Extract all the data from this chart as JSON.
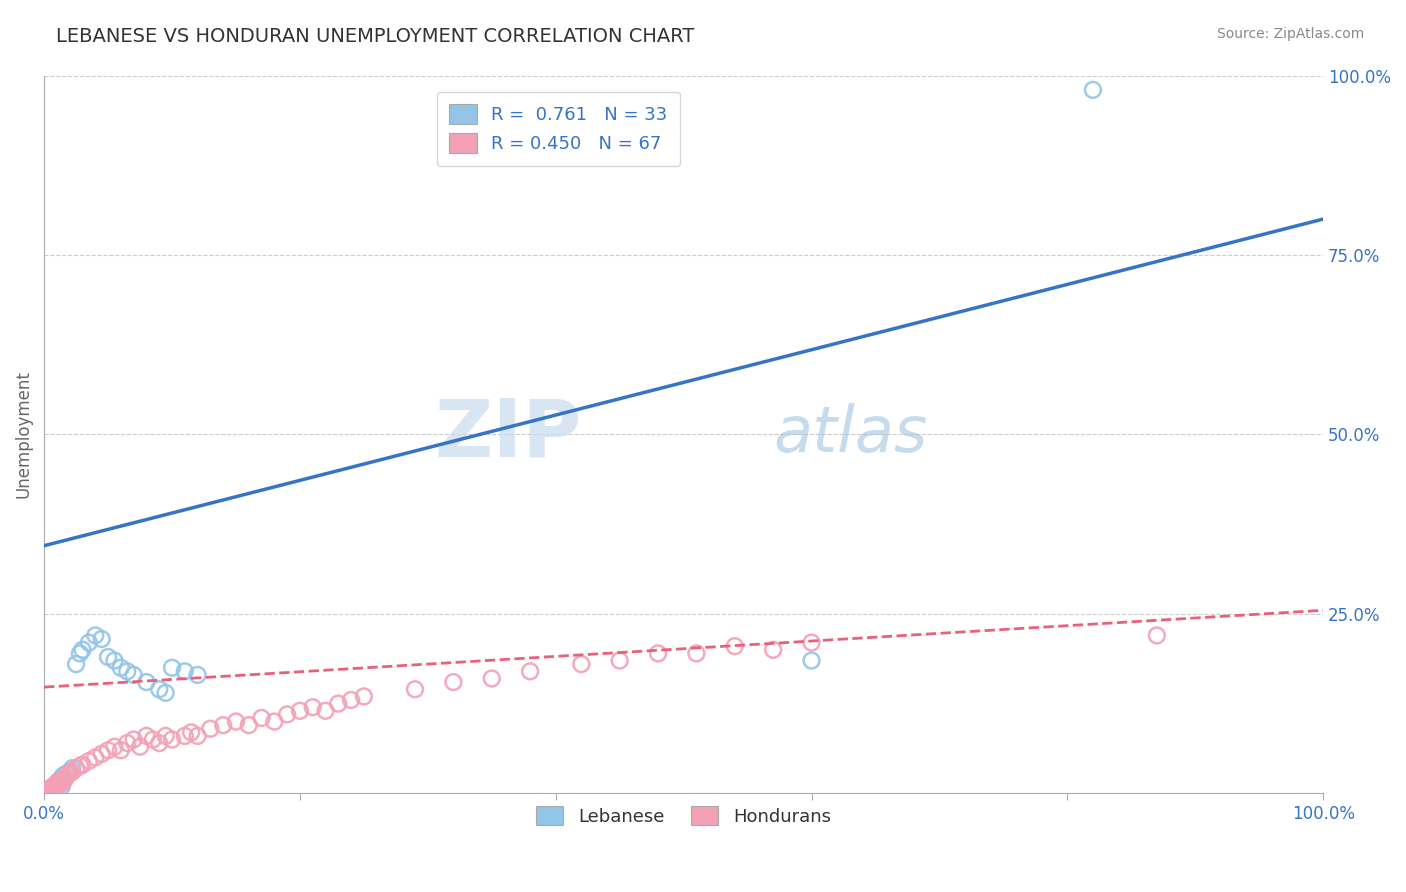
{
  "title": "LEBANESE VS HONDURAN UNEMPLOYMENT CORRELATION CHART",
  "source_text": "Source: ZipAtlas.com",
  "ylabel": "Unemployment",
  "watermark_zip": "ZIP",
  "watermark_atlas": "atlas",
  "xlim": [
    0.0,
    1.0
  ],
  "ylim": [
    0.0,
    1.0
  ],
  "lebanese_color": "#92C5E8",
  "honduran_color": "#F4A0B5",
  "lebanese_line_color": "#3674C8",
  "honduran_line_color": "#E8607A",
  "grid_color": "#CCCCCC",
  "background_color": "#FFFFFF",
  "title_fontsize": 14,
  "legend_label_lebanese": "Lebanese",
  "legend_label_honduran": "Hondurans",
  "leb_line_x0": 0.0,
  "leb_line_y0": 0.345,
  "leb_line_x1": 1.0,
  "leb_line_y1": 0.8,
  "hon_line_x0": 0.0,
  "hon_line_y0": 0.148,
  "hon_line_x1": 1.0,
  "hon_line_y1": 0.255,
  "leb_scatter_x": [
    0.005,
    0.007,
    0.008,
    0.009,
    0.01,
    0.011,
    0.012,
    0.013,
    0.014,
    0.015,
    0.016,
    0.018,
    0.02,
    0.022,
    0.025,
    0.028,
    0.03,
    0.035,
    0.04,
    0.045,
    0.05,
    0.055,
    0.06,
    0.065,
    0.07,
    0.08,
    0.09,
    0.095,
    0.1,
    0.11,
    0.12,
    0.6,
    0.82
  ],
  "leb_scatter_y": [
    0.005,
    0.008,
    0.01,
    0.006,
    0.012,
    0.015,
    0.018,
    0.02,
    0.01,
    0.025,
    0.022,
    0.028,
    0.03,
    0.035,
    0.18,
    0.195,
    0.2,
    0.21,
    0.22,
    0.215,
    0.19,
    0.185,
    0.175,
    0.17,
    0.165,
    0.155,
    0.145,
    0.14,
    0.175,
    0.17,
    0.165,
    0.185,
    0.98
  ],
  "hon_scatter_x": [
    0.002,
    0.003,
    0.004,
    0.005,
    0.005,
    0.006,
    0.007,
    0.007,
    0.008,
    0.009,
    0.01,
    0.01,
    0.011,
    0.012,
    0.013,
    0.014,
    0.015,
    0.016,
    0.017,
    0.018,
    0.02,
    0.022,
    0.025,
    0.028,
    0.03,
    0.035,
    0.04,
    0.045,
    0.05,
    0.055,
    0.06,
    0.065,
    0.07,
    0.075,
    0.08,
    0.085,
    0.09,
    0.095,
    0.1,
    0.11,
    0.115,
    0.12,
    0.13,
    0.14,
    0.15,
    0.16,
    0.17,
    0.18,
    0.19,
    0.2,
    0.21,
    0.22,
    0.23,
    0.24,
    0.25,
    0.29,
    0.32,
    0.35,
    0.38,
    0.42,
    0.45,
    0.48,
    0.51,
    0.54,
    0.57,
    0.6,
    0.87
  ],
  "hon_scatter_y": [
    0.002,
    0.004,
    0.003,
    0.005,
    0.007,
    0.006,
    0.008,
    0.01,
    0.009,
    0.011,
    0.012,
    0.015,
    0.013,
    0.016,
    0.018,
    0.014,
    0.02,
    0.019,
    0.022,
    0.025,
    0.028,
    0.03,
    0.035,
    0.038,
    0.04,
    0.045,
    0.05,
    0.055,
    0.06,
    0.065,
    0.06,
    0.07,
    0.075,
    0.065,
    0.08,
    0.075,
    0.07,
    0.08,
    0.075,
    0.08,
    0.085,
    0.08,
    0.09,
    0.095,
    0.1,
    0.095,
    0.105,
    0.1,
    0.11,
    0.115,
    0.12,
    0.115,
    0.125,
    0.13,
    0.135,
    0.145,
    0.155,
    0.16,
    0.17,
    0.18,
    0.185,
    0.195,
    0.195,
    0.205,
    0.2,
    0.21,
    0.22
  ]
}
